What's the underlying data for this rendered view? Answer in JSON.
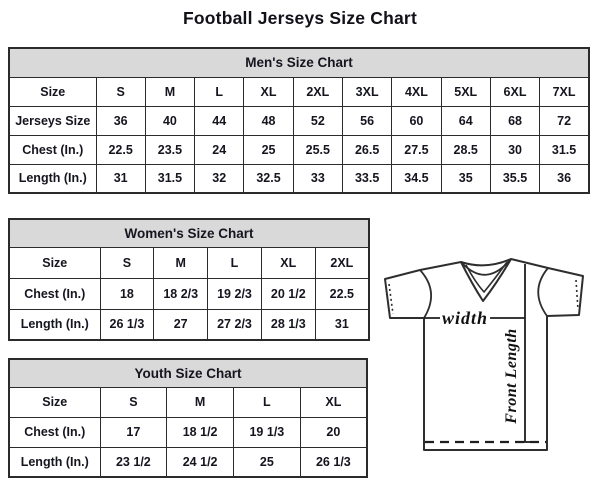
{
  "page_title": "Football Jerseys Size Chart",
  "chart_data": [
    {
      "type": "table",
      "title": "Men's Size Chart",
      "rows": [
        [
          "Size",
          "S",
          "M",
          "L",
          "XL",
          "2XL",
          "3XL",
          "4XL",
          "5XL",
          "6XL",
          "7XL"
        ],
        [
          "Jerseys Size",
          "36",
          "40",
          "44",
          "48",
          "52",
          "56",
          "60",
          "64",
          "68",
          "72"
        ],
        [
          "Chest (In.)",
          "22.5",
          "23.5",
          "24",
          "25",
          "25.5",
          "26.5",
          "27.5",
          "28.5",
          "30",
          "31.5"
        ],
        [
          "Length (In.)",
          "31",
          "31.5",
          "32",
          "32.5",
          "33",
          "33.5",
          "34.5",
          "35",
          "35.5",
          "36"
        ]
      ]
    },
    {
      "type": "table",
      "title": "Women's Size Chart",
      "rows": [
        [
          "Size",
          "S",
          "M",
          "L",
          "XL",
          "2XL"
        ],
        [
          "Chest (In.)",
          "18",
          "18 2/3",
          "19 2/3",
          "20 1/2",
          "22.5"
        ],
        [
          "Length (In.)",
          "26 1/3",
          "27",
          "27 2/3",
          "28 1/3",
          "31"
        ]
      ]
    },
    {
      "type": "table",
      "title": "Youth Size Chart",
      "rows": [
        [
          "Size",
          "S",
          "M",
          "L",
          "XL"
        ],
        [
          "Chest (In.)",
          "17",
          "18 1/2",
          "19 1/3",
          "20"
        ],
        [
          "Length (In.)",
          "23 1/2",
          "24 1/2",
          "25",
          "26 1/3"
        ]
      ]
    }
  ],
  "jersey_diagram": {
    "width_label": "width",
    "front_length_label": "Front Length"
  },
  "colors": {
    "header_bg": "#d9d9d9",
    "border": "#2b2b2b",
    "text": "#15151f",
    "diagram_line": "#2e2e2e"
  }
}
